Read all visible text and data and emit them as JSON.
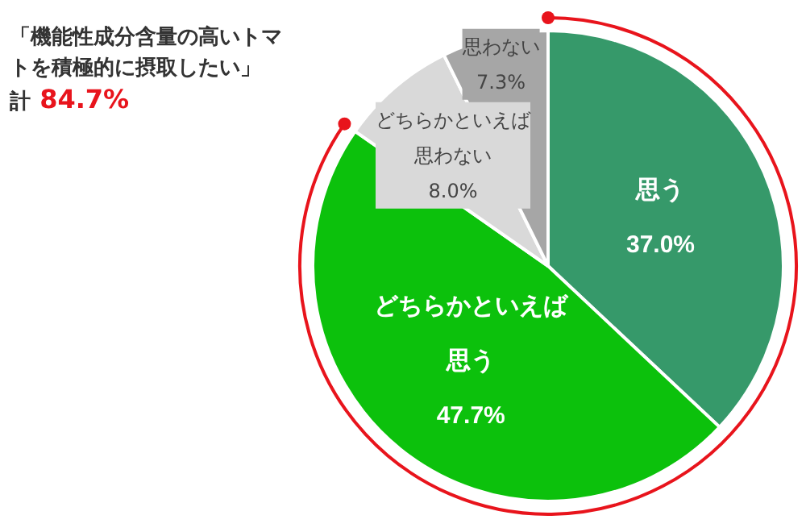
{
  "chart_data": {
    "type": "pie",
    "categories": [
      "思う",
      "どちらかといえば思う",
      "どちらかといえば思わない",
      "思わない"
    ],
    "values": [
      37.0,
      47.7,
      8.0,
      7.3
    ],
    "colors": [
      "#36996a",
      "#0cc10c",
      "#d9d9d9",
      "#a6a6a6"
    ],
    "value_labels": [
      "37.0%",
      "47.7%",
      "8.0%",
      "7.3%"
    ],
    "annotations": [
      "「機能性成分含量の高いトマトを積極的に摂取したい」",
      "計",
      "84.7%"
    ]
  }
}
